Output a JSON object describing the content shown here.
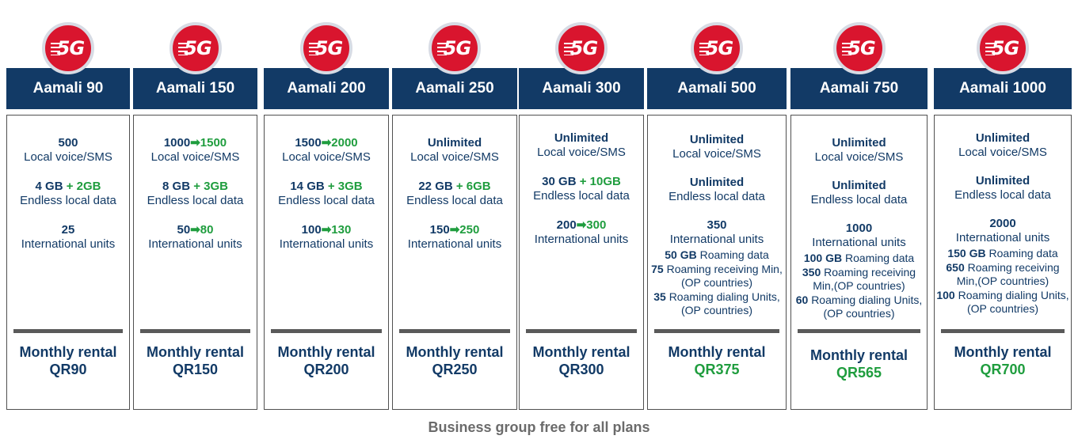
{
  "plans": [
    {
      "badge": "5G",
      "name": "Aamali 90",
      "voice": "500",
      "voice_label": "Local voice/SMS",
      "data": "4 GB",
      "data_bonus": "+ 2GB",
      "data_label": "Endless local data",
      "intl": "25",
      "intl_label": "International units",
      "rental_label": "Monthly rental",
      "price": "QR90"
    },
    {
      "badge": "5G",
      "name": "Aamali 150",
      "voice": "1000",
      "voice_new": "1500",
      "voice_label": "Local voice/SMS",
      "data": "8 GB",
      "data_bonus": "+ 3GB",
      "data_label": "Endless local data",
      "intl": "50",
      "intl_new": "80",
      "intl_label": "International units",
      "rental_label": "Monthly rental",
      "price": "QR150"
    },
    {
      "badge": "5G",
      "name": "Aamali 200",
      "voice": "1500",
      "voice_new": "2000",
      "voice_label": "Local voice/SMS",
      "data": "14 GB",
      "data_bonus": "+ 3GB",
      "data_label": "Endless local data",
      "intl": "100",
      "intl_new": "130",
      "intl_label": "International units",
      "rental_label": "Monthly rental",
      "price": "QR200"
    },
    {
      "badge": "5G",
      "name": "Aamali 250",
      "voice": "Unlimited",
      "voice_label": "Local voice/SMS",
      "data": "22 GB",
      "data_bonus": "+ 6GB",
      "data_label": "Endless local data",
      "intl": "150",
      "intl_new": "250",
      "intl_label": "International units",
      "rental_label": "Monthly rental",
      "price": "QR250"
    },
    {
      "badge": "5G",
      "name": "Aamali 300",
      "voice": "Unlimited",
      "voice_label": "Local voice/SMS",
      "data": "30 GB",
      "data_bonus": "+ 10GB",
      "data_label": "Endless local data",
      "intl": "200",
      "intl_new": "300",
      "intl_label": "International units",
      "rental_label": "Monthly rental",
      "price": "QR300"
    },
    {
      "badge": "5G",
      "name": "Aamali 500",
      "voice": "Unlimited",
      "voice_label": "Local voice/SMS",
      "data": "Unlimited",
      "data_label": "Endless local data",
      "intl": "350",
      "intl_label": "International units",
      "roam_data": "50 GB",
      "roam_data_label": "Roaming data",
      "roam_recv": "75",
      "roam_recv_label": "Roaming receiving Min,(OP countries)",
      "roam_dial": "35",
      "roam_dial_label": "Roaming dialing Units,(OP countries)",
      "rental_label": "Monthly rental",
      "price": "QR375"
    },
    {
      "badge": "5G",
      "name": "Aamali 750",
      "voice": "Unlimited",
      "voice_label": "Local voice/SMS",
      "data": "Unlimited",
      "data_label": "Endless local data",
      "intl": "1000",
      "intl_label": "International units",
      "roam_data": "100 GB",
      "roam_data_label": "Roaming data",
      "roam_recv": "350",
      "roam_recv_label": "Roaming receiving Min,(OP countries)",
      "roam_dial": "60",
      "roam_dial_label": "Roaming dialing Units,(OP countries)",
      "rental_label": "Monthly rental",
      "price": "QR565"
    },
    {
      "badge": "5G",
      "name": "Aamali 1000",
      "voice": "Unlimited",
      "voice_label": "Local voice/SMS",
      "data": "Unlimited",
      "data_label": "Endless local data",
      "intl": "2000",
      "intl_label": "International units",
      "roam_data": "150 GB",
      "roam_data_label": "Roaming data",
      "roam_recv": "650",
      "roam_recv_label": "Roaming receiving Min,(OP countries)",
      "roam_dial": "100",
      "roam_dial_label": "Roaming dialing Units,(OP countries)",
      "rental_label": "Monthly rental",
      "price": "QR700"
    }
  ],
  "footer": "Business group free for all plans",
  "colors": {
    "navy": "#123a66",
    "red": "#d9152e",
    "green": "#1f9d3e",
    "gray_text": "#6b6b6b"
  }
}
